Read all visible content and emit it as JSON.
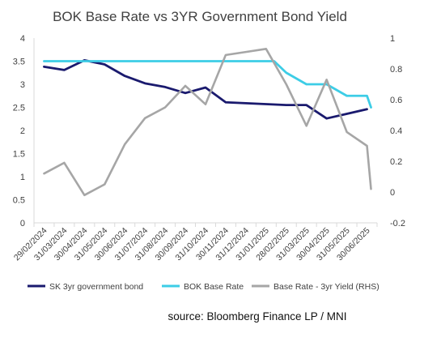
{
  "chart_data": {
    "type": "line",
    "title": "BOK Base Rate vs 3YR Government Bond Yield",
    "x": [
      "29/02/2024",
      "31/03/2024",
      "30/04/2024",
      "31/05/2024",
      "30/06/2024",
      "31/07/2024",
      "31/08/2024",
      "30/09/2024",
      "31/10/2024",
      "30/11/2024",
      "31/12/2024",
      "31/01/2025",
      "28/02/2025",
      "31/03/2025",
      "30/04/2025",
      "31/05/2025",
      "30/06/2025"
    ],
    "y_left": {
      "ticks": [
        "0",
        "0.5",
        "1",
        "1.5",
        "2",
        "2.5",
        "3",
        "3.5",
        "4"
      ],
      "lim": [
        0,
        4
      ]
    },
    "y_right": {
      "ticks": [
        "-0.2",
        "0",
        "0.2",
        "0.4",
        "0.6",
        "0.8",
        "1"
      ],
      "lim": [
        -0.2,
        1
      ]
    },
    "series": [
      {
        "name": "SK 3yr government bond",
        "axis": "left",
        "color": "#1a1a6e",
        "points": [
          [
            0,
            3.38
          ],
          [
            1,
            3.31
          ],
          [
            2,
            3.52
          ],
          [
            3,
            3.43
          ],
          [
            4,
            3.18
          ],
          [
            5,
            3.02
          ],
          [
            6,
            2.94
          ],
          [
            7,
            2.81
          ],
          [
            8,
            2.93
          ],
          [
            9,
            2.61
          ],
          [
            10,
            2.59
          ],
          [
            11,
            2.57
          ],
          [
            12,
            2.55
          ],
          [
            13,
            2.55
          ],
          [
            14,
            2.26
          ],
          [
            15,
            2.36
          ],
          [
            16,
            2.46
          ]
        ]
      },
      {
        "name": "BOK Base Rate",
        "axis": "left",
        "color": "#3dcde6",
        "points": [
          [
            0,
            3.5
          ],
          [
            1,
            3.5
          ],
          [
            2,
            3.5
          ],
          [
            3,
            3.5
          ],
          [
            4,
            3.5
          ],
          [
            5,
            3.5
          ],
          [
            6,
            3.5
          ],
          [
            7,
            3.5
          ],
          [
            8,
            3.5
          ],
          [
            9,
            3.5
          ],
          [
            10,
            3.5
          ],
          [
            11,
            3.5
          ],
          [
            11.4,
            3.5
          ],
          [
            12,
            3.25
          ],
          [
            13,
            3.0
          ],
          [
            14,
            3.0
          ],
          [
            15,
            2.75
          ],
          [
            16,
            2.75
          ],
          [
            16.2,
            2.5
          ]
        ]
      },
      {
        "name": "Base Rate - 3yr Yield (RHS)",
        "axis": "right",
        "color": "#a6a6a6",
        "points": [
          [
            0,
            0.12
          ],
          [
            1,
            0.19
          ],
          [
            2,
            -0.02
          ],
          [
            3,
            0.05
          ],
          [
            4,
            0.31
          ],
          [
            5,
            0.48
          ],
          [
            6,
            0.55
          ],
          [
            7,
            0.69
          ],
          [
            8,
            0.57
          ],
          [
            9,
            0.89
          ],
          [
            10,
            0.91
          ],
          [
            11,
            0.93
          ],
          [
            12,
            0.7
          ],
          [
            13,
            0.43
          ],
          [
            14,
            0.73
          ],
          [
            15,
            0.39
          ],
          [
            16,
            0.3
          ],
          [
            16.2,
            0.02
          ]
        ]
      }
    ],
    "legend": {
      "position": "bottom",
      "entries": [
        "SK 3yr government bond",
        "BOK Base Rate",
        "Base Rate - 3yr Yield (RHS)"
      ]
    },
    "source": "source: Bloomberg Finance LP / MNI",
    "grid": false
  }
}
